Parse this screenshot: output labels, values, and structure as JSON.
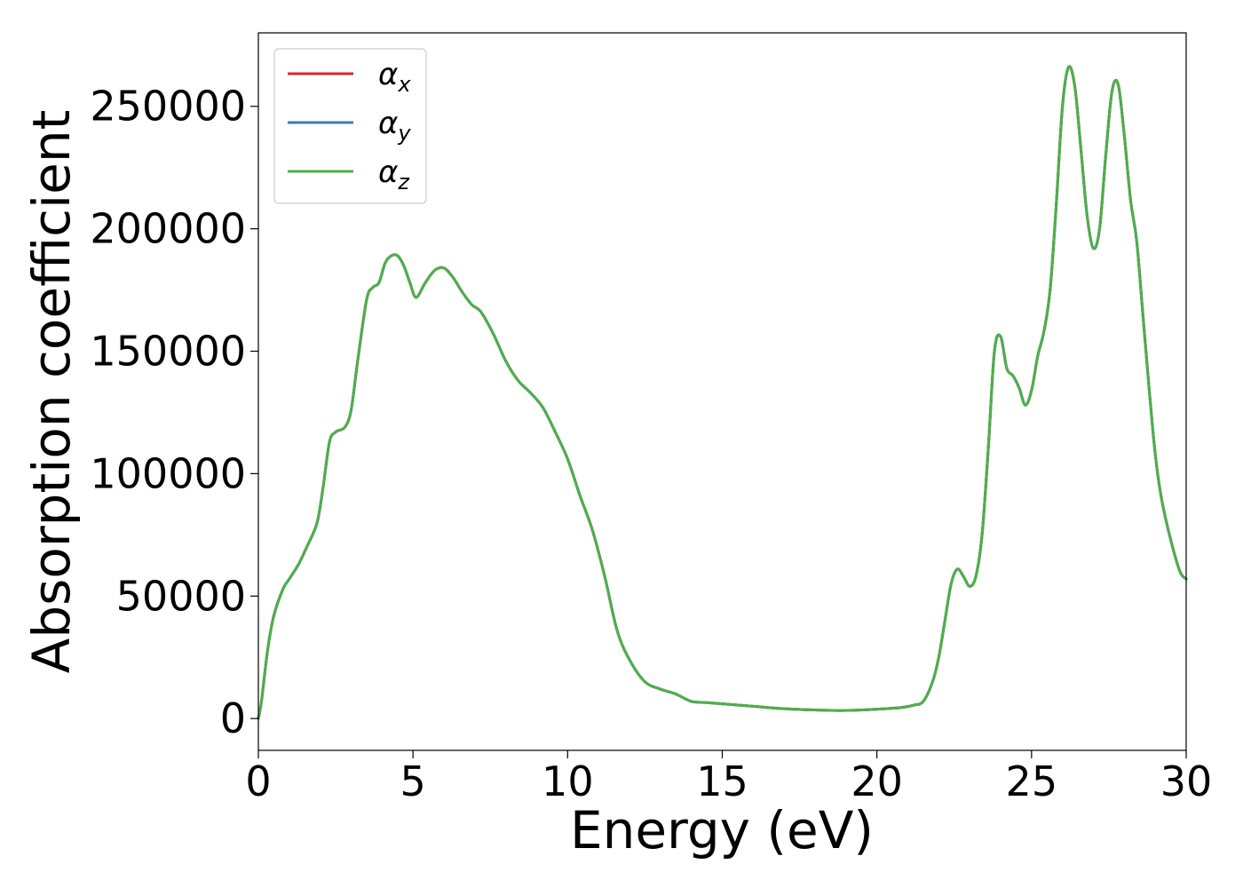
{
  "chart_data": {
    "type": "line",
    "title": "",
    "xlabel": "Energy (eV)",
    "ylabel": "Absorption coefficient",
    "xlim": [
      0,
      30
    ],
    "ylim": [
      -13000,
      280000
    ],
    "grid": false,
    "legend_position": "top-left",
    "x_ticks": [
      0,
      5,
      10,
      15,
      20,
      25,
      30
    ],
    "x_tick_labels": [
      "0",
      "5",
      "10",
      "15",
      "20",
      "25",
      "30"
    ],
    "y_ticks": [
      0,
      50000,
      100000,
      150000,
      200000,
      250000
    ],
    "y_tick_labels": [
      "0",
      "50000",
      "100000",
      "150000",
      "200000",
      "250000"
    ],
    "x": [
      0,
      0.1,
      0.3,
      0.5,
      0.8,
      1.0,
      1.3,
      1.6,
      1.9,
      2.1,
      2.3,
      2.5,
      2.8,
      3.0,
      3.2,
      3.5,
      3.7,
      3.9,
      4.1,
      4.3,
      4.5,
      4.7,
      4.9,
      5.1,
      5.4,
      5.7,
      6.0,
      6.3,
      6.6,
      6.9,
      7.2,
      7.6,
      8.0,
      8.4,
      8.8,
      9.2,
      9.6,
      10.0,
      10.4,
      10.8,
      11.2,
      11.6,
      12.0,
      12.5,
      13.0,
      13.5,
      14.0,
      14.5,
      15.0,
      16.0,
      17.0,
      18.0,
      19.0,
      20.0,
      20.8,
      21.2,
      21.5,
      21.8,
      22.0,
      22.2,
      22.4,
      22.6,
      22.8,
      23.0,
      23.2,
      23.4,
      23.6,
      23.8,
      24.0,
      24.2,
      24.4,
      24.6,
      24.8,
      25.0,
      25.2,
      25.4,
      25.6,
      25.8,
      26.0,
      26.2,
      26.4,
      26.6,
      26.8,
      27.0,
      27.2,
      27.4,
      27.6,
      27.8,
      28.0,
      28.2,
      28.4,
      28.6,
      28.8,
      29.0,
      29.2,
      29.5,
      29.8,
      30.0
    ],
    "series": [
      {
        "name": "α_x",
        "color": "#d62728",
        "values": [
          0,
          7000,
          28000,
          42000,
          53000,
          57000,
          63000,
          71000,
          80000,
          95000,
          113000,
          117000,
          119000,
          126000,
          145000,
          171000,
          176000,
          178000,
          186000,
          189000,
          189000,
          185000,
          178000,
          172000,
          178000,
          183000,
          184000,
          180000,
          174000,
          169000,
          166000,
          157000,
          146000,
          138000,
          133000,
          127000,
          117000,
          106000,
          91000,
          77000,
          58000,
          36000,
          24000,
          15000,
          12000,
          10000,
          7000,
          6500,
          6000,
          5000,
          4000,
          3500,
          3300,
          3800,
          4500,
          5500,
          7000,
          15000,
          25000,
          40000,
          55000,
          61000,
          58000,
          54000,
          58000,
          75000,
          110000,
          150000,
          156000,
          143000,
          140000,
          135000,
          128000,
          134000,
          148000,
          158000,
          175000,
          210000,
          250000,
          266000,
          258000,
          232000,
          205000,
          192000,
          200000,
          230000,
          256000,
          259000,
          238000,
          212000,
          195000,
          165000,
          135000,
          108000,
          90000,
          73000,
          60000,
          57000
        ]
      },
      {
        "name": "α_y",
        "color": "#377eb8",
        "values": [
          0,
          7000,
          28000,
          42000,
          53000,
          57000,
          63000,
          71000,
          80000,
          95000,
          113000,
          117000,
          119000,
          126000,
          145000,
          171000,
          176000,
          178000,
          186000,
          189000,
          189000,
          185000,
          178000,
          172000,
          178000,
          183000,
          184000,
          180000,
          174000,
          169000,
          166000,
          157000,
          146000,
          138000,
          133000,
          127000,
          117000,
          106000,
          91000,
          77000,
          58000,
          36000,
          24000,
          15000,
          12000,
          10000,
          7000,
          6500,
          6000,
          5000,
          4000,
          3500,
          3300,
          3800,
          4500,
          5500,
          7000,
          15000,
          25000,
          40000,
          55000,
          61000,
          58000,
          54000,
          58000,
          75000,
          110000,
          150000,
          156000,
          143000,
          140000,
          135000,
          128000,
          134000,
          148000,
          158000,
          175000,
          210000,
          250000,
          266000,
          258000,
          232000,
          205000,
          192000,
          200000,
          230000,
          256000,
          259000,
          238000,
          212000,
          195000,
          165000,
          135000,
          108000,
          90000,
          73000,
          60000,
          57000
        ]
      },
      {
        "name": "α_z",
        "color": "#4daf4a",
        "values": [
          0,
          7000,
          28000,
          42000,
          53000,
          57000,
          63000,
          71000,
          80000,
          95000,
          113000,
          117000,
          119000,
          126000,
          145000,
          171000,
          176000,
          178000,
          186000,
          189000,
          189000,
          185000,
          178000,
          172000,
          178000,
          183000,
          184000,
          180000,
          174000,
          169000,
          166000,
          157000,
          146000,
          138000,
          133000,
          127000,
          117000,
          106000,
          91000,
          77000,
          58000,
          36000,
          24000,
          15000,
          12000,
          10000,
          7000,
          6500,
          6000,
          5000,
          4000,
          3500,
          3300,
          3800,
          4500,
          5500,
          7000,
          15000,
          25000,
          40000,
          55000,
          61000,
          58000,
          54000,
          58000,
          75000,
          110000,
          150000,
          156000,
          143000,
          140000,
          135000,
          128000,
          134000,
          148000,
          158000,
          175000,
          210000,
          250000,
          266000,
          258000,
          232000,
          205000,
          192000,
          200000,
          230000,
          256000,
          259000,
          238000,
          212000,
          195000,
          165000,
          135000,
          108000,
          90000,
          73000,
          60000,
          57000
        ]
      }
    ],
    "legend": [
      {
        "symbol": "α",
        "sub": "x",
        "color": "#d62728"
      },
      {
        "symbol": "α",
        "sub": "y",
        "color": "#377eb8"
      },
      {
        "symbol": "α",
        "sub": "z",
        "color": "#4daf4a"
      }
    ]
  }
}
